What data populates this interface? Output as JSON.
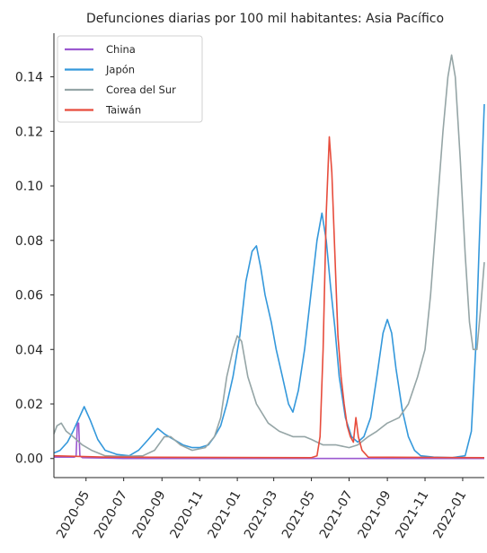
{
  "chart_data": {
    "type": "line",
    "title": "Defunciones diarias por 100 mil habitantes: Asia Pacífico",
    "xlabel": "",
    "ylabel": "",
    "x_range": [
      "2020-03-10",
      "2022-02-05"
    ],
    "ylim": [
      -0.007,
      0.156
    ],
    "y_ticks": [
      0.0,
      0.02,
      0.04,
      0.06,
      0.08,
      0.1,
      0.12,
      0.14
    ],
    "y_tick_labels": [
      "0.00",
      "0.02",
      "0.04",
      "0.06",
      "0.08",
      "0.10",
      "0.12",
      "0.14"
    ],
    "x_ticks": [
      "2020-05-01",
      "2020-07-01",
      "2020-09-01",
      "2020-11-01",
      "2021-01-01",
      "2021-03-01",
      "2021-05-01",
      "2021-07-01",
      "2021-09-01",
      "2021-11-01",
      "2022-01-01"
    ],
    "x_tick_labels": [
      "2020-05",
      "2020-07",
      "2020-09",
      "2020-11",
      "2021-01",
      "2021-03",
      "2021-05",
      "2021-07",
      "2021-09",
      "2021-11",
      "2022-01"
    ],
    "grid": false,
    "legend_position": "top-left",
    "series": [
      {
        "name": "China",
        "color": "#9b59d0",
        "points": [
          [
            "2020-03-10",
            0.0005
          ],
          [
            "2020-04-12",
            0.0005
          ],
          [
            "2020-04-15",
            0.001
          ],
          [
            "2020-04-17",
            0.013
          ],
          [
            "2020-04-19",
            0.013
          ],
          [
            "2020-04-21",
            0.001
          ],
          [
            "2020-04-25",
            0.0003
          ],
          [
            "2020-07-01",
            0.0
          ],
          [
            "2022-02-05",
            0.0
          ]
        ]
      },
      {
        "name": "Japón",
        "color": "#3498db",
        "points": [
          [
            "2020-03-10",
            0.002
          ],
          [
            "2020-03-20",
            0.003
          ],
          [
            "2020-04-01",
            0.006
          ],
          [
            "2020-04-10",
            0.01
          ],
          [
            "2020-04-20",
            0.015
          ],
          [
            "2020-04-28",
            0.019
          ],
          [
            "2020-05-08",
            0.014
          ],
          [
            "2020-05-20",
            0.007
          ],
          [
            "2020-06-01",
            0.003
          ],
          [
            "2020-06-20",
            0.0015
          ],
          [
            "2020-07-10",
            0.001
          ],
          [
            "2020-07-25",
            0.003
          ],
          [
            "2020-08-10",
            0.007
          ],
          [
            "2020-08-25",
            0.011
          ],
          [
            "2020-09-05",
            0.009
          ],
          [
            "2020-09-20",
            0.007
          ],
          [
            "2020-10-05",
            0.005
          ],
          [
            "2020-10-20",
            0.004
          ],
          [
            "2020-11-01",
            0.004
          ],
          [
            "2020-11-15",
            0.005
          ],
          [
            "2020-11-25",
            0.008
          ],
          [
            "2020-12-05",
            0.012
          ],
          [
            "2020-12-15",
            0.02
          ],
          [
            "2020-12-25",
            0.03
          ],
          [
            "2021-01-05",
            0.045
          ],
          [
            "2021-01-15",
            0.065
          ],
          [
            "2021-01-25",
            0.076
          ],
          [
            "2021-02-01",
            0.078
          ],
          [
            "2021-02-08",
            0.07
          ],
          [
            "2021-02-15",
            0.06
          ],
          [
            "2021-02-25",
            0.05
          ],
          [
            "2021-03-05",
            0.04
          ],
          [
            "2021-03-15",
            0.03
          ],
          [
            "2021-03-25",
            0.02
          ],
          [
            "2021-04-01",
            0.017
          ],
          [
            "2021-04-10",
            0.025
          ],
          [
            "2021-04-20",
            0.04
          ],
          [
            "2021-04-30",
            0.06
          ],
          [
            "2021-05-10",
            0.08
          ],
          [
            "2021-05-18",
            0.09
          ],
          [
            "2021-05-25",
            0.08
          ],
          [
            "2021-06-01",
            0.063
          ],
          [
            "2021-06-08",
            0.048
          ],
          [
            "2021-06-15",
            0.03
          ],
          [
            "2021-06-25",
            0.015
          ],
          [
            "2021-07-05",
            0.008
          ],
          [
            "2021-07-15",
            0.006
          ],
          [
            "2021-07-25",
            0.008
          ],
          [
            "2021-08-05",
            0.015
          ],
          [
            "2021-08-15",
            0.03
          ],
          [
            "2021-08-25",
            0.046
          ],
          [
            "2021-09-01",
            0.051
          ],
          [
            "2021-09-08",
            0.046
          ],
          [
            "2021-09-15",
            0.033
          ],
          [
            "2021-09-25",
            0.018
          ],
          [
            "2021-10-05",
            0.008
          ],
          [
            "2021-10-15",
            0.003
          ],
          [
            "2021-10-25",
            0.001
          ],
          [
            "2021-11-15",
            0.0005
          ],
          [
            "2021-12-15",
            0.0003
          ],
          [
            "2022-01-05",
            0.001
          ],
          [
            "2022-01-15",
            0.01
          ],
          [
            "2022-01-22",
            0.04
          ],
          [
            "2022-01-28",
            0.08
          ],
          [
            "2022-02-05",
            0.13
          ]
        ]
      },
      {
        "name": "Corea del Sur",
        "color": "#95a5a6",
        "points": [
          [
            "2020-03-10",
            0.009
          ],
          [
            "2020-03-15",
            0.012
          ],
          [
            "2020-03-22",
            0.013
          ],
          [
            "2020-03-30",
            0.01
          ],
          [
            "2020-04-10",
            0.008
          ],
          [
            "2020-04-25",
            0.005
          ],
          [
            "2020-05-10",
            0.003
          ],
          [
            "2020-06-01",
            0.001
          ],
          [
            "2020-07-01",
            0.0008
          ],
          [
            "2020-08-01",
            0.001
          ],
          [
            "2020-08-20",
            0.003
          ],
          [
            "2020-09-05",
            0.008
          ],
          [
            "2020-09-15",
            0.008
          ],
          [
            "2020-10-01",
            0.005
          ],
          [
            "2020-10-20",
            0.003
          ],
          [
            "2020-11-10",
            0.004
          ],
          [
            "2020-11-25",
            0.008
          ],
          [
            "2020-12-05",
            0.015
          ],
          [
            "2020-12-15",
            0.03
          ],
          [
            "2020-12-25",
            0.04
          ],
          [
            "2021-01-01",
            0.045
          ],
          [
            "2021-01-08",
            0.043
          ],
          [
            "2021-01-18",
            0.03
          ],
          [
            "2021-02-01",
            0.02
          ],
          [
            "2021-02-20",
            0.013
          ],
          [
            "2021-03-10",
            0.01
          ],
          [
            "2021-04-01",
            0.008
          ],
          [
            "2021-04-20",
            0.008
          ],
          [
            "2021-05-01",
            0.007
          ],
          [
            "2021-05-10",
            0.006
          ],
          [
            "2021-05-20",
            0.005
          ],
          [
            "2021-06-10",
            0.005
          ],
          [
            "2021-07-01",
            0.004
          ],
          [
            "2021-07-15",
            0.005
          ],
          [
            "2021-08-01",
            0.008
          ],
          [
            "2021-08-15",
            0.01
          ],
          [
            "2021-09-01",
            0.013
          ],
          [
            "2021-09-20",
            0.015
          ],
          [
            "2021-10-05",
            0.02
          ],
          [
            "2021-10-20",
            0.03
          ],
          [
            "2021-11-01",
            0.04
          ],
          [
            "2021-11-10",
            0.06
          ],
          [
            "2021-11-20",
            0.09
          ],
          [
            "2021-11-30",
            0.12
          ],
          [
            "2021-12-08",
            0.14
          ],
          [
            "2021-12-14",
            0.148
          ],
          [
            "2021-12-20",
            0.14
          ],
          [
            "2021-12-28",
            0.11
          ],
          [
            "2022-01-05",
            0.075
          ],
          [
            "2022-01-12",
            0.05
          ],
          [
            "2022-01-18",
            0.04
          ],
          [
            "2022-01-24",
            0.04
          ],
          [
            "2022-01-30",
            0.055
          ],
          [
            "2022-02-05",
            0.072
          ]
        ]
      },
      {
        "name": "Taiwán",
        "color": "#e74c3c",
        "points": [
          [
            "2020-03-10",
            0.001
          ],
          [
            "2020-06-01",
            0.0005
          ],
          [
            "2021-05-01",
            0.0003
          ],
          [
            "2021-05-10",
            0.001
          ],
          [
            "2021-05-15",
            0.008
          ],
          [
            "2021-05-20",
            0.04
          ],
          [
            "2021-05-25",
            0.09
          ],
          [
            "2021-05-30",
            0.118
          ],
          [
            "2021-06-03",
            0.105
          ],
          [
            "2021-06-08",
            0.075
          ],
          [
            "2021-06-13",
            0.045
          ],
          [
            "2021-06-18",
            0.03
          ],
          [
            "2021-06-23",
            0.02
          ],
          [
            "2021-06-28",
            0.012
          ],
          [
            "2021-07-03",
            0.008
          ],
          [
            "2021-07-08",
            0.006
          ],
          [
            "2021-07-12",
            0.015
          ],
          [
            "2021-07-16",
            0.008
          ],
          [
            "2021-07-22",
            0.003
          ],
          [
            "2021-08-01",
            0.0005
          ],
          [
            "2022-02-05",
            0.0003
          ]
        ]
      }
    ]
  }
}
